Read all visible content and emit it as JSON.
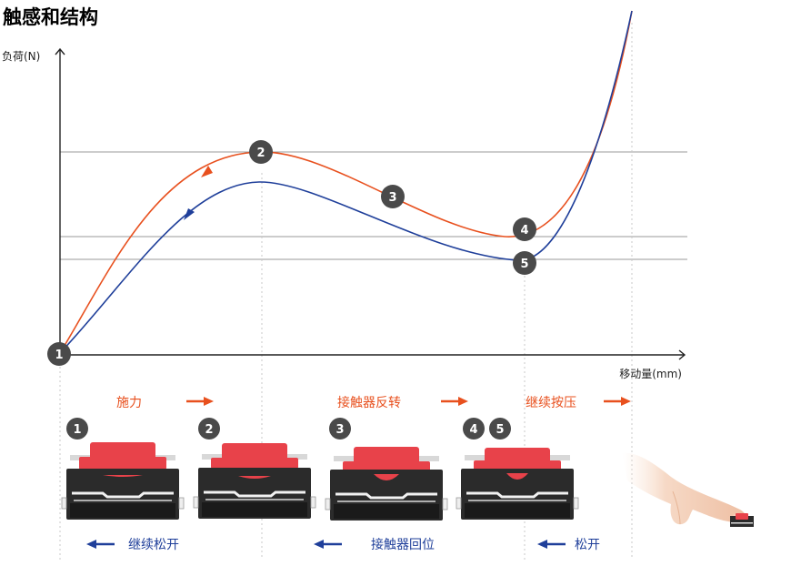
{
  "title": "触感和结构",
  "axes": {
    "y_label": "负荷(N)",
    "x_label": "移动量(mm)"
  },
  "points": [
    "1",
    "2",
    "3",
    "4",
    "5"
  ],
  "press_captions": [
    "施力",
    "接触器反转",
    "继续按压"
  ],
  "release_captions": [
    "继续松开",
    "接触器回位",
    "松开"
  ],
  "stage_badges": [
    [
      "1"
    ],
    [
      "2"
    ],
    [
      "3"
    ],
    [
      "4",
      "5"
    ]
  ],
  "colors": {
    "press": "#e8501e",
    "release": "#1f3f9a",
    "badge": "#4a4a4a",
    "gridline": "#9a9a9a",
    "actuator": "#e8424a",
    "housing": "#2b2b2b"
  },
  "icons": {
    "press_arrow": "arrow-right-icon",
    "release_arrow": "arrow-left-icon",
    "finger": "finger-press-icon",
    "switch": "tact-switch-icon"
  }
}
